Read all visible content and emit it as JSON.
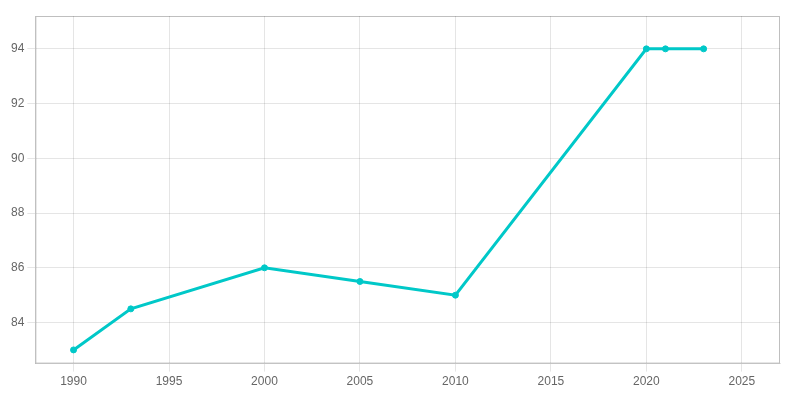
{
  "chart_data": {
    "type": "line",
    "x": [
      1990,
      1993,
      2000,
      2005,
      2010,
      2020,
      2021,
      2023
    ],
    "values": [
      83,
      84.5,
      86,
      85.5,
      85,
      94,
      94,
      94
    ],
    "color": "#00c8c8",
    "marker": "circle",
    "xlim": [
      1988,
      2027
    ],
    "ylim": [
      82.5,
      95.2
    ],
    "xticks": [
      1990,
      1995,
      2000,
      2005,
      2010,
      2015,
      2020,
      2025
    ],
    "yticks": [
      84,
      86,
      88,
      90,
      92,
      94
    ],
    "grid": true
  }
}
